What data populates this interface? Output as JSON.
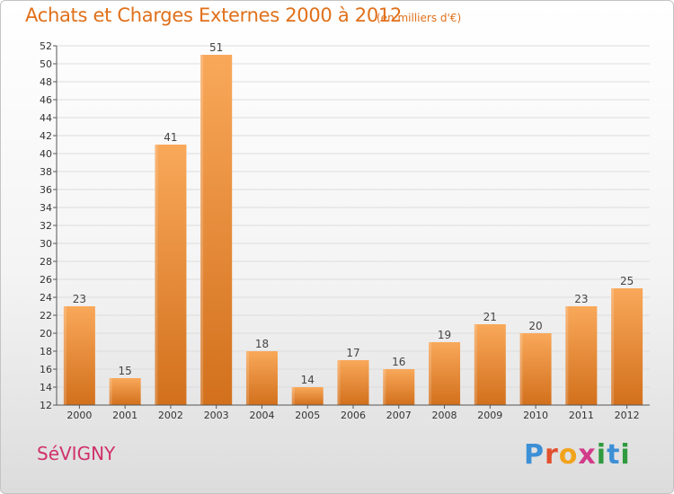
{
  "header": {
    "title": "Achats et Charges Externes 2000 à 2012",
    "subtitle": "(en milliers d'€)"
  },
  "footer": {
    "commune": "SéVIGNY",
    "logo_text": "Proxiti"
  },
  "colors": {
    "bar_light": "#f9a85a",
    "bar_dark": "#d2701c",
    "title": "#e0701a",
    "commune": "#d0306a"
  },
  "chart_data": {
    "type": "bar",
    "title": "Achats et Charges Externes 2000 à 2012",
    "subtitle": "(en milliers d'€)",
    "categories": [
      "2000",
      "2001",
      "2002",
      "2003",
      "2004",
      "2005",
      "2006",
      "2007",
      "2008",
      "2009",
      "2010",
      "2011",
      "2012"
    ],
    "values": [
      23,
      15,
      41,
      51,
      18,
      14,
      17,
      16,
      19,
      21,
      20,
      23,
      25
    ],
    "xlabel": "",
    "ylabel": "",
    "ylim": [
      12,
      52
    ],
    "yticks": [
      12,
      14,
      16,
      18,
      20,
      22,
      24,
      26,
      28,
      30,
      32,
      34,
      36,
      38,
      40,
      42,
      44,
      46,
      48,
      50,
      52
    ],
    "grid": true,
    "data_labels": true
  }
}
